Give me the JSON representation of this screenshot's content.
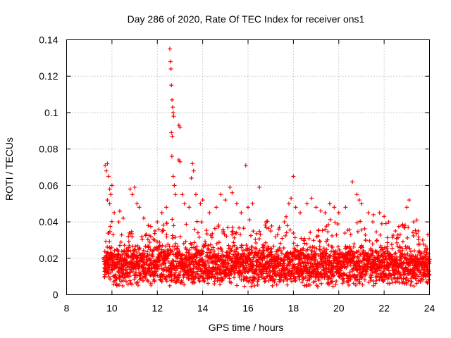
{
  "chart_data": {
    "type": "scatter",
    "title": "Day 286 of 2020, Rate Of TEC Index for receiver ons1",
    "xlabel": "GPS time / hours",
    "ylabel": "ROTI / TECUs",
    "xlim": [
      8,
      24
    ],
    "ylim": [
      0,
      0.14
    ],
    "grid": true,
    "marker": "+",
    "color": "#ff0000",
    "xticks": [
      8,
      10,
      12,
      14,
      16,
      18,
      20,
      22,
      24
    ],
    "xtick_labels": [
      "8",
      "10",
      "12",
      "14",
      "16",
      "18",
      "20",
      "22",
      "24"
    ],
    "yticks": [
      0,
      0.02,
      0.04,
      0.06,
      0.08,
      0.1,
      0.12,
      0.14
    ],
    "ytick_labels": [
      "0",
      "0.02",
      "0.04",
      "0.06",
      "0.08",
      "0.1",
      "0.12",
      "0.14"
    ],
    "series": [
      {
        "name": "ROTI",
        "points": [
          [
            9.7,
            0.071
          ],
          [
            9.75,
            0.068
          ],
          [
            9.8,
            0.072
          ],
          [
            9.85,
            0.065
          ],
          [
            9.9,
            0.058
          ],
          [
            9.95,
            0.055
          ],
          [
            10.0,
            0.06
          ],
          [
            9.8,
            0.052
          ],
          [
            9.9,
            0.05
          ],
          [
            10.1,
            0.045
          ],
          [
            10.3,
            0.04
          ],
          [
            10.5,
            0.042
          ],
          [
            10.8,
            0.058
          ],
          [
            10.9,
            0.055
          ],
          [
            11.0,
            0.059
          ],
          [
            11.1,
            0.05
          ],
          [
            11.2,
            0.048
          ],
          [
            11.4,
            0.042
          ],
          [
            11.6,
            0.038
          ],
          [
            11.9,
            0.035
          ],
          [
            12.0,
            0.04
          ],
          [
            12.2,
            0.045
          ],
          [
            12.4,
            0.048
          ],
          [
            12.55,
            0.135
          ],
          [
            12.58,
            0.128
          ],
          [
            12.6,
            0.124
          ],
          [
            12.62,
            0.115
          ],
          [
            12.65,
            0.107
          ],
          [
            12.68,
            0.103
          ],
          [
            12.7,
            0.1
          ],
          [
            12.72,
            0.098
          ],
          [
            12.62,
            0.089
          ],
          [
            12.66,
            0.087
          ],
          [
            12.64,
            0.076
          ],
          [
            12.7,
            0.065
          ],
          [
            12.75,
            0.06
          ],
          [
            12.8,
            0.055
          ],
          [
            12.95,
            0.093
          ],
          [
            13.0,
            0.092
          ],
          [
            12.95,
            0.074
          ],
          [
            13.0,
            0.073
          ],
          [
            13.1,
            0.055
          ],
          [
            13.2,
            0.05
          ],
          [
            13.4,
            0.048
          ],
          [
            13.55,
            0.072
          ],
          [
            13.6,
            0.068
          ],
          [
            13.5,
            0.064
          ],
          [
            13.7,
            0.055
          ],
          [
            13.9,
            0.05
          ],
          [
            14.0,
            0.052
          ],
          [
            14.3,
            0.045
          ],
          [
            14.6,
            0.048
          ],
          [
            14.8,
            0.055
          ],
          [
            15.0,
            0.052
          ],
          [
            15.2,
            0.059
          ],
          [
            15.3,
            0.056
          ],
          [
            15.5,
            0.05
          ],
          [
            15.7,
            0.045
          ],
          [
            15.9,
            0.071
          ],
          [
            16.0,
            0.048
          ],
          [
            16.2,
            0.05
          ],
          [
            16.5,
            0.059
          ],
          [
            16.8,
            0.04
          ],
          [
            17.0,
            0.035
          ],
          [
            17.3,
            0.033
          ],
          [
            17.6,
            0.04
          ],
          [
            17.8,
            0.05
          ],
          [
            17.9,
            0.053
          ],
          [
            18.0,
            0.065
          ],
          [
            18.1,
            0.048
          ],
          [
            18.3,
            0.045
          ],
          [
            18.6,
            0.05
          ],
          [
            18.8,
            0.053
          ],
          [
            19.0,
            0.048
          ],
          [
            19.2,
            0.046
          ],
          [
            19.4,
            0.045
          ],
          [
            19.6,
            0.05
          ],
          [
            19.8,
            0.048
          ],
          [
            20.0,
            0.045
          ],
          [
            20.3,
            0.048
          ],
          [
            20.6,
            0.062
          ],
          [
            20.8,
            0.055
          ],
          [
            20.9,
            0.052
          ],
          [
            21.0,
            0.05
          ],
          [
            21.3,
            0.045
          ],
          [
            21.5,
            0.04
          ],
          [
            21.8,
            0.045
          ],
          [
            22.0,
            0.043
          ],
          [
            22.2,
            0.04
          ],
          [
            22.5,
            0.035
          ],
          [
            22.8,
            0.038
          ],
          [
            23.0,
            0.048
          ],
          [
            23.1,
            0.052
          ],
          [
            23.3,
            0.04
          ],
          [
            23.5,
            0.035
          ],
          [
            23.7,
            0.03
          ],
          [
            23.9,
            0.025
          ]
        ],
        "dense_band": {
          "x_start": 9.65,
          "x_end": 24.0,
          "step": 0.02,
          "y_min": 0.004,
          "y_typical": 0.016,
          "y_spread": 0.012
        }
      }
    ]
  }
}
